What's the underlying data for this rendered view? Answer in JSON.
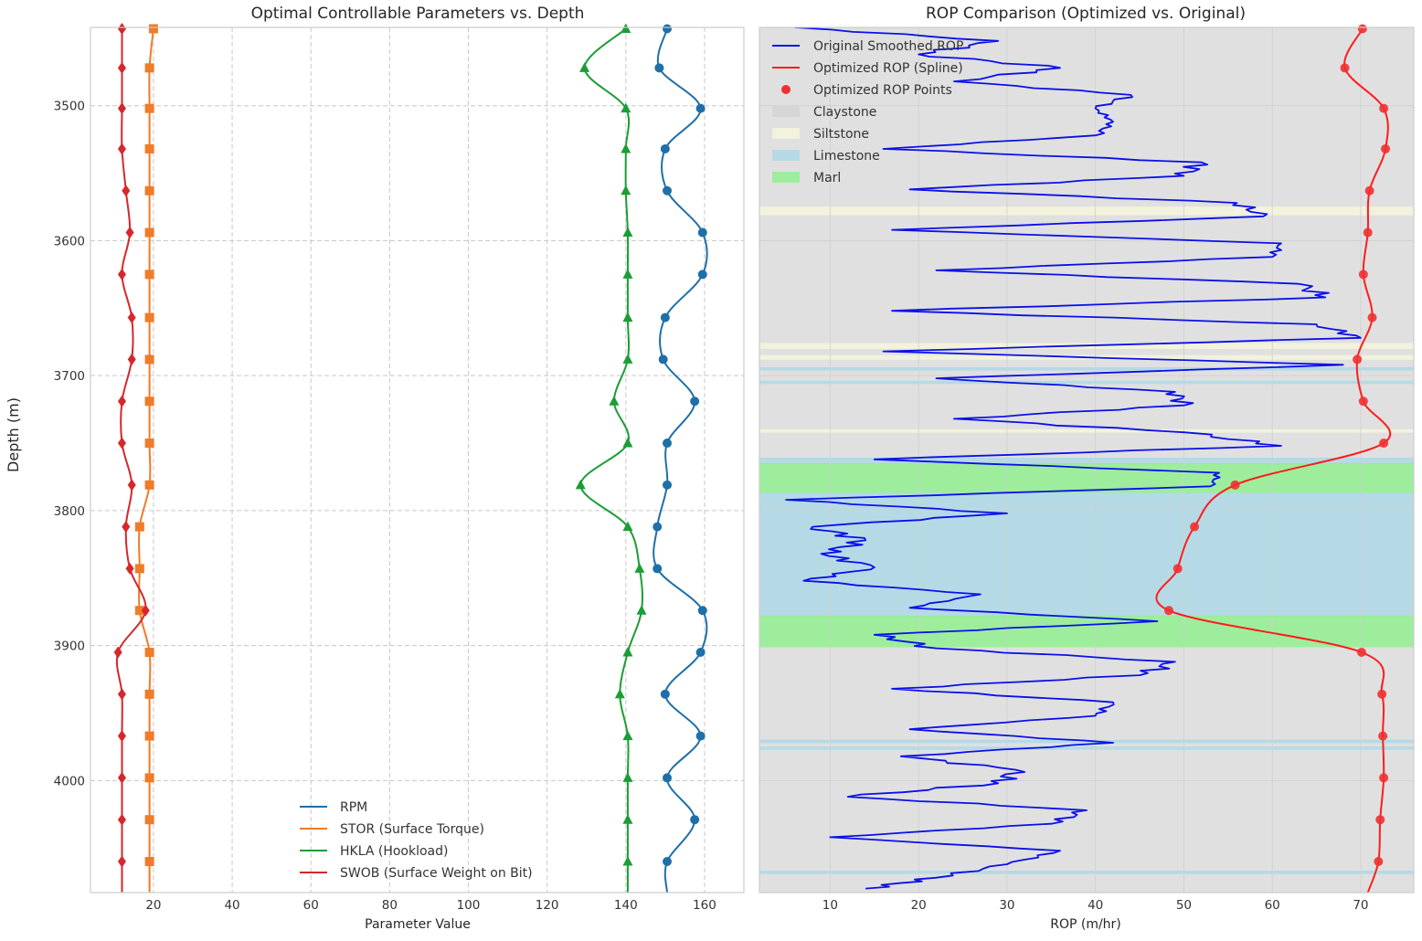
{
  "figure": {
    "ylabel": "Depth (m)"
  },
  "chart_data": [
    {
      "type": "line",
      "title": "Optimal Controllable Parameters vs. Depth",
      "xlabel": "Parameter Value",
      "ylabel": "Depth (m)",
      "xlim": [
        4,
        170
      ],
      "ylim": [
        4083,
        3442
      ],
      "xticks": [
        20,
        40,
        60,
        80,
        100,
        120,
        140,
        160
      ],
      "yticks": [
        3500,
        3600,
        3700,
        3800,
        3900,
        4000
      ],
      "grid": true,
      "legend_position": "lower-center",
      "depths": [
        3443,
        3472,
        3502,
        3532,
        3563,
        3594,
        3625,
        3657,
        3688,
        3719,
        3750,
        3781,
        3812,
        3843,
        3874,
        3905,
        3936,
        3967,
        3998,
        4029,
        4060
      ],
      "series": [
        {
          "name": "RPM",
          "color": "#1f6fa8",
          "marker": "circle",
          "line_top": 3443,
          "line_bottom": 4083,
          "values": [
            150.5,
            148.5,
            159,
            150,
            150.5,
            159.5,
            159.5,
            150,
            149.5,
            157.5,
            150.5,
            150.5,
            148,
            148,
            159.5,
            159,
            150,
            159,
            150.5,
            157.5,
            150.5
          ]
        },
        {
          "name": "STOR (Surface Torque)",
          "color": "#f07b28",
          "marker": "square",
          "line_top": 3443,
          "line_bottom": 4083,
          "values": [
            20,
            19,
            19,
            19,
            19,
            19,
            19,
            19,
            19,
            19,
            19,
            19,
            16.5,
            16.5,
            16.5,
            19,
            19,
            19,
            19,
            19,
            19
          ]
        },
        {
          "name": "HKLA (Hookload)",
          "color": "#1a9e35",
          "marker": "triangle",
          "line_top": 3443,
          "line_bottom": 4083,
          "values": [
            140,
            129.5,
            140,
            140,
            140,
            140.5,
            140.5,
            140.5,
            140.5,
            137,
            140.5,
            128.5,
            140.5,
            143.5,
            144,
            140.5,
            138.5,
            140.5,
            140.5,
            140.5,
            140.5
          ]
        },
        {
          "name": "SWOB (Surface Weight on Bit)",
          "color": "#d6272c",
          "marker": "diamond",
          "line_top": 3443,
          "line_bottom": 4083,
          "values": [
            12,
            12,
            12,
            12,
            13,
            14,
            12,
            14.5,
            14.5,
            12,
            12,
            14.5,
            13,
            14,
            18,
            11,
            12,
            12,
            12,
            12,
            12
          ]
        }
      ]
    },
    {
      "type": "line",
      "title": "ROP Comparison (Optimized vs. Original)",
      "xlabel": "ROP (m/hr)",
      "xlim": [
        2,
        76
      ],
      "ylim": [
        4083,
        3442
      ],
      "xticks": [
        10,
        20,
        30,
        40,
        50,
        60,
        70
      ],
      "grid": true,
      "legend_position": "top-left",
      "series": [
        {
          "name": "Original Smoothed ROP",
          "color": "#0a10e8",
          "depth": [
            3442,
            3452,
            3462,
            3472,
            3482,
            3492,
            3502,
            3512,
            3522,
            3532,
            3542,
            3552,
            3562,
            3572,
            3582,
            3592,
            3602,
            3612,
            3622,
            3632,
            3642,
            3652,
            3662,
            3672,
            3682,
            3692,
            3702,
            3712,
            3722,
            3732,
            3742,
            3752,
            3762,
            3772,
            3782,
            3792,
            3802,
            3812,
            3822,
            3832,
            3842,
            3852,
            3862,
            3872,
            3882,
            3892,
            3902,
            3912,
            3922,
            3932,
            3942,
            3952,
            3962,
            3972,
            3982,
            3992,
            4002,
            4012,
            4022,
            4032,
            4042,
            4052,
            4062,
            4072,
            4080
          ],
          "values": [
            6,
            29,
            20,
            36,
            24,
            44,
            40,
            42,
            40,
            16,
            52,
            50,
            19,
            56,
            59,
            17,
            61,
            60,
            22,
            63,
            66,
            17,
            65,
            70,
            16,
            68,
            22,
            49,
            50,
            24,
            50,
            61,
            15,
            54,
            53,
            5,
            30,
            8,
            14,
            9,
            15,
            7,
            27,
            19,
            47,
            15,
            22,
            49,
            45,
            17,
            42,
            40,
            19,
            42,
            18,
            31,
            29,
            12,
            39,
            35,
            10,
            36,
            30,
            22,
            14
          ]
        },
        {
          "name": "Optimized ROP (Spline)",
          "color": "#ff1c1c",
          "depth": [
            3443,
            3472,
            3502,
            3532,
            3563,
            3594,
            3625,
            3657,
            3688,
            3719,
            3750,
            3781,
            3812,
            3843,
            3874,
            3905,
            3936,
            3967,
            3998,
            4029,
            4060,
            4083
          ],
          "values": [
            70.2,
            68.2,
            72.6,
            72.8,
            71,
            70.8,
            70.3,
            71.3,
            69.6,
            70.3,
            72.6,
            55.8,
            51.2,
            49.3,
            48.3,
            70.1,
            72.4,
            72.5,
            72.6,
            72.2,
            72,
            70.8
          ]
        },
        {
          "name": "Optimized ROP Points",
          "color": "#f23030",
          "type": "scatter",
          "depth": [
            3443,
            3472,
            3502,
            3532,
            3563,
            3594,
            3625,
            3657,
            3688,
            3719,
            3750,
            3781,
            3812,
            3843,
            3874,
            3905,
            3936,
            3967,
            3998,
            4029,
            4060
          ],
          "values": [
            70.2,
            68.2,
            72.6,
            72.8,
            71,
            70.8,
            70.3,
            71.3,
            69.6,
            70.3,
            72.6,
            55.8,
            51.2,
            49.3,
            48.3,
            70.1,
            72.4,
            72.5,
            72.6,
            72.2,
            72
          ]
        }
      ],
      "lithology": {
        "legend": [
          {
            "name": "Claystone",
            "color": "#d3d3d3"
          },
          {
            "name": "Siltstone",
            "color": "#f5f5dc"
          },
          {
            "name": "Limestone",
            "color": "#add8e6"
          },
          {
            "name": "Marl",
            "color": "#90ee90"
          }
        ],
        "background": "Claystone",
        "intervals": [
          {
            "lith": "Siltstone",
            "top": 3575,
            "bottom": 3581
          },
          {
            "lith": "Siltstone",
            "top": 3676,
            "bottom": 3680
          },
          {
            "lith": "Siltstone",
            "top": 3685,
            "bottom": 3688
          },
          {
            "lith": "Limestone",
            "top": 3694,
            "bottom": 3696
          },
          {
            "lith": "Limestone",
            "top": 3704,
            "bottom": 3706
          },
          {
            "lith": "Siltstone",
            "top": 3740,
            "bottom": 3742
          },
          {
            "lith": "Limestone",
            "top": 3761,
            "bottom": 3765
          },
          {
            "lith": "Marl",
            "top": 3765,
            "bottom": 3787
          },
          {
            "lith": "Limestone",
            "top": 3787,
            "bottom": 3878
          },
          {
            "lith": "Marl",
            "top": 3878,
            "bottom": 3901
          },
          {
            "lith": "Limestone",
            "top": 3970,
            "bottom": 3972
          },
          {
            "lith": "Limestone",
            "top": 3975,
            "bottom": 3977
          },
          {
            "lith": "Limestone",
            "top": 4067,
            "bottom": 4069
          }
        ]
      }
    }
  ]
}
